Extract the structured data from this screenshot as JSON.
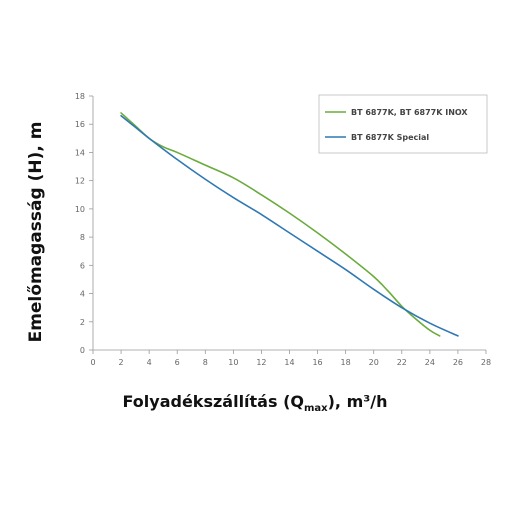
{
  "chart_data": {
    "type": "line",
    "xlabel_main": "Folyadékszállítás (Q",
    "xlabel_sub": "max",
    "xlabel_end": "), m³/h",
    "ylabel": "Emelőmagasság (H), m",
    "xlim": [
      0,
      28
    ],
    "ylim": [
      0,
      18
    ],
    "xticks": [
      0,
      2,
      4,
      6,
      8,
      10,
      12,
      14,
      16,
      18,
      20,
      22,
      24,
      26,
      28
    ],
    "yticks": [
      0,
      2,
      4,
      6,
      8,
      10,
      12,
      14,
      16,
      18
    ],
    "grid": false,
    "legend_position": "top-right",
    "series": [
      {
        "name": "BT 6877K, BT 6877K INOX",
        "color": "#6aab3d",
        "x": [
          2,
          3,
          4,
          5,
          6,
          8,
          10,
          12,
          14,
          16,
          18,
          20,
          21,
          22,
          23,
          24,
          24.7
        ],
        "y": [
          16.8,
          15.9,
          15.0,
          14.4,
          14.0,
          13.1,
          12.2,
          11.0,
          9.7,
          8.3,
          6.8,
          5.2,
          4.2,
          3.1,
          2.2,
          1.4,
          1.0
        ]
      },
      {
        "name": "BT 6877K Special",
        "color": "#2f78b4",
        "x": [
          2,
          3,
          4,
          6,
          8,
          10,
          12,
          14,
          16,
          18,
          20,
          22,
          24,
          26
        ],
        "y": [
          16.6,
          15.8,
          15.0,
          13.5,
          12.1,
          10.8,
          9.6,
          8.3,
          7.0,
          5.7,
          4.3,
          3.0,
          1.9,
          1.0
        ]
      }
    ]
  }
}
